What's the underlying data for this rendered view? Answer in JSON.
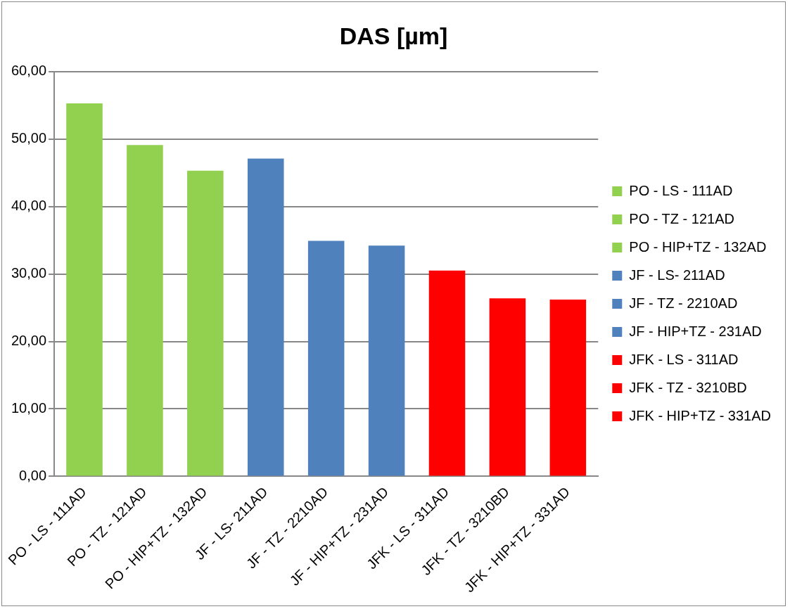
{
  "chart_data": {
    "type": "bar",
    "title": "DAS [µm]",
    "categories": [
      "PO - LS - 111AD",
      "PO - TZ - 121AD",
      "PO - HIP+TZ - 132AD",
      "JF - LS- 211AD",
      "JF - TZ - 2210AD",
      "JF - HIP+TZ - 231AD",
      "JFK - LS - 311AD",
      "JFK - TZ - 3210BD",
      "JFK - HIP+TZ - 331AD"
    ],
    "series": [
      {
        "name": "PO - LS - 111AD",
        "color": "#92d050",
        "values": [
          55.3,
          null,
          null,
          null,
          null,
          null,
          null,
          null,
          null
        ]
      },
      {
        "name": "PO - TZ - 121AD",
        "color": "#92d050",
        "values": [
          null,
          49.1,
          null,
          null,
          null,
          null,
          null,
          null,
          null
        ]
      },
      {
        "name": "PO - HIP+TZ - 132AD",
        "color": "#92d050",
        "values": [
          null,
          null,
          45.3,
          null,
          null,
          null,
          null,
          null,
          null
        ]
      },
      {
        "name": "JF - LS- 211AD",
        "color": "#4f81bd",
        "values": [
          null,
          null,
          null,
          47.1,
          null,
          null,
          null,
          null,
          null
        ]
      },
      {
        "name": "JF - TZ - 2210AD",
        "color": "#4f81bd",
        "values": [
          null,
          null,
          null,
          null,
          34.9,
          null,
          null,
          null,
          null
        ]
      },
      {
        "name": "JF - HIP+TZ - 231AD",
        "color": "#4f81bd",
        "values": [
          null,
          null,
          null,
          null,
          null,
          34.2,
          null,
          null,
          null
        ]
      },
      {
        "name": "JFK - LS - 311AD",
        "color": "#ff0000",
        "values": [
          null,
          null,
          null,
          null,
          null,
          null,
          30.5,
          null,
          null
        ]
      },
      {
        "name": "JFK - TZ - 3210BD",
        "color": "#ff0000",
        "values": [
          null,
          null,
          null,
          null,
          null,
          null,
          null,
          26.4,
          null
        ]
      },
      {
        "name": "JFK - HIP+TZ - 331AD",
        "color": "#ff0000",
        "values": [
          null,
          null,
          null,
          null,
          null,
          null,
          null,
          null,
          26.2
        ]
      }
    ],
    "ylim": [
      0,
      60
    ],
    "yticks": [
      {
        "value": 0,
        "label": "0,00"
      },
      {
        "value": 10,
        "label": "10,00"
      },
      {
        "value": 20,
        "label": "20,00"
      },
      {
        "value": 30,
        "label": "30,00"
      },
      {
        "value": 40,
        "label": "40,00"
      },
      {
        "value": 50,
        "label": "50,00"
      },
      {
        "value": 60,
        "label": "60,00"
      }
    ],
    "grid": "y",
    "legend": "right"
  }
}
